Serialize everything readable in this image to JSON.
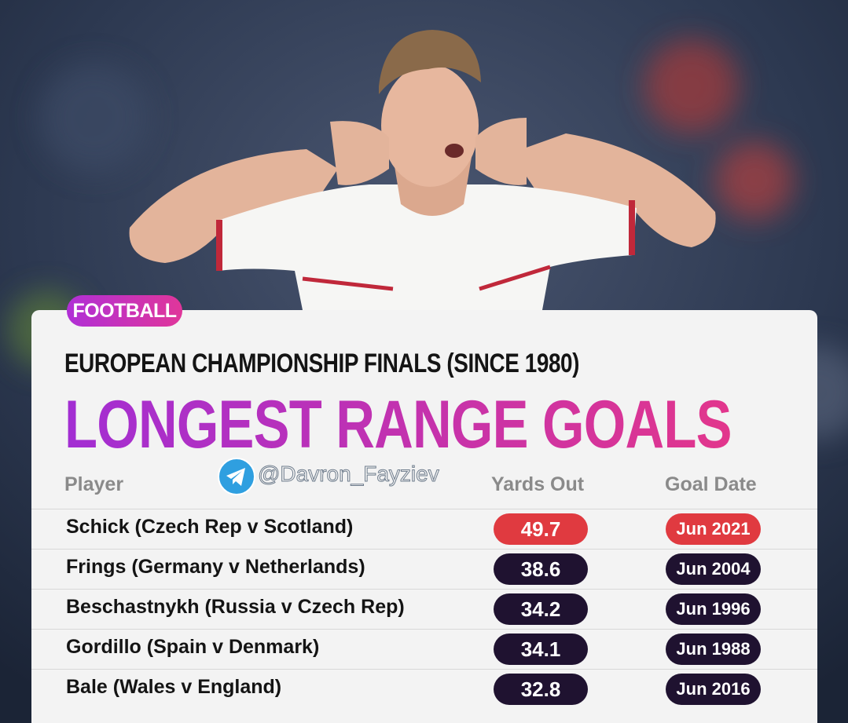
{
  "tag": "FOOTBALL",
  "subtitle": "EUROPEAN CHAMPIONSHIP FINALS (SINCE 1980)",
  "title": "LONGEST RANGE GOALS",
  "watermark": "@Davron_Fayziev",
  "table": {
    "headers": [
      "Player",
      "Yards Out",
      "Goal Date"
    ],
    "rows": [
      [
        "Schick (Czech Rep v Scotland)",
        49.7,
        "Jun 2021"
      ],
      [
        "Frings (Germany v Netherlands)",
        38.6,
        "Jun 2004"
      ],
      [
        "Beschastnykh (Russia v Czech Rep)",
        34.2,
        "Jun 1996"
      ],
      [
        "Gordillo (Spain v Denmark)",
        34.1,
        "Jun 1988"
      ],
      [
        "Bale (Wales v England)",
        32.8,
        "Jun 2016"
      ]
    ]
  }
}
